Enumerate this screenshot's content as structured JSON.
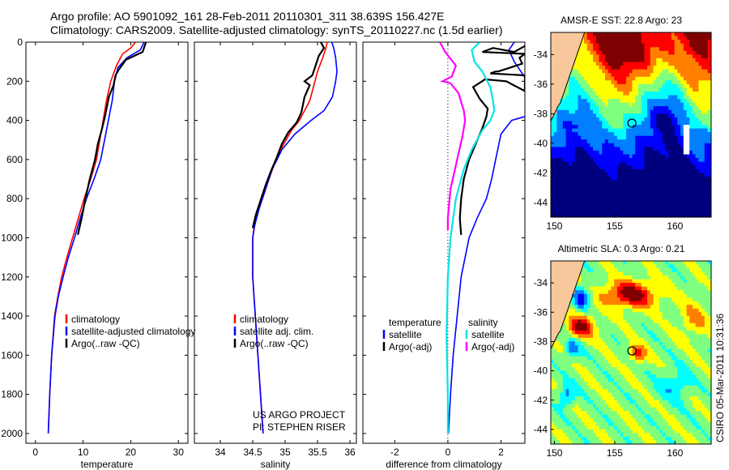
{
  "header": {
    "line1": "Argo profile: AO 5901092_161 28-Feb-2011 20110301_311 38.639S 156.427E",
    "line2": "Climatology: CARS2009. Satellite-adjusted climatology: synTS_20110227.nc (1.5d earlier)"
  },
  "credit": "CSIRO 05-Mar-2011 10:31:36",
  "colors": {
    "climatology": "#ff0000",
    "satellite": "#0000ff",
    "argo": "#000000",
    "cyan": "#00e5e5",
    "magenta": "#ff00ff"
  },
  "chart_data": [
    {
      "type": "line",
      "id": "temperature",
      "xlabel": "temperature",
      "xlim": [
        -2,
        32
      ],
      "ylim": [
        0,
        2050
      ],
      "xticks": [
        0,
        10,
        20,
        30
      ],
      "yticks": [
        0,
        200,
        400,
        600,
        800,
        1000,
        1200,
        1400,
        1600,
        1800,
        2000
      ],
      "legend": [
        "climatology",
        "satellite-adjusted climatology",
        "Argo(..raw -QC)"
      ],
      "series": [
        {
          "name": "climatology",
          "color": "#ff0000",
          "points": [
            [
              21,
              0
            ],
            [
              20,
              30
            ],
            [
              18.3,
              60
            ],
            [
              17,
              120
            ],
            [
              15.8,
              200
            ],
            [
              14.9,
              300
            ],
            [
              14.2,
              400
            ],
            [
              13.5,
              500
            ],
            [
              12.8,
              600
            ],
            [
              11.6,
              700
            ],
            [
              10.2,
              800
            ],
            [
              9,
              900
            ],
            [
              7.8,
              1000
            ],
            [
              6.6,
              1100
            ],
            [
              5.5,
              1200
            ],
            [
              4.7,
              1300
            ],
            [
              4,
              1400
            ],
            [
              3.4,
              1600
            ],
            [
              3,
              1800
            ],
            [
              2.7,
              2000
            ]
          ]
        },
        {
          "name": "satellite-adjusted climatology",
          "color": "#0000ff",
          "points": [
            [
              22.8,
              0
            ],
            [
              22,
              40
            ],
            [
              19.2,
              80
            ],
            [
              17.3,
              130
            ],
            [
              16.6,
              200
            ],
            [
              16.1,
              300
            ],
            [
              15.3,
              400
            ],
            [
              14.5,
              500
            ],
            [
              13.7,
              600
            ],
            [
              12.3,
              700
            ],
            [
              10.7,
              800
            ],
            [
              9.4,
              900
            ],
            [
              8.2,
              1000
            ],
            [
              6.9,
              1100
            ],
            [
              5.8,
              1200
            ],
            [
              4.8,
              1300
            ],
            [
              4.1,
              1400
            ],
            [
              3.4,
              1600
            ],
            [
              3,
              1800
            ],
            [
              2.7,
              2000
            ]
          ]
        },
        {
          "name": "Argo(..raw -QC)",
          "color": "#000000",
          "points": [
            [
              23.2,
              0
            ],
            [
              22.5,
              50
            ],
            [
              19,
              90
            ],
            [
              17.5,
              140
            ],
            [
              16.8,
              170
            ],
            [
              16.4,
              220
            ],
            [
              15.4,
              280
            ],
            [
              14.6,
              380
            ],
            [
              13.9,
              450
            ],
            [
              13.1,
              520
            ],
            [
              12.5,
              600
            ],
            [
              11.4,
              700
            ],
            [
              10.5,
              800
            ],
            [
              9.7,
              900
            ],
            [
              8.9,
              985
            ]
          ]
        }
      ]
    },
    {
      "type": "line",
      "id": "salinity",
      "xlabel": "salinity",
      "xlim": [
        33.6,
        36.1
      ],
      "ylim": [
        0,
        2050
      ],
      "xticks": [
        34,
        34.5,
        35,
        35.5,
        36
      ],
      "yticks": [
        0,
        200,
        400,
        600,
        800,
        1000,
        1200,
        1400,
        1600,
        1800,
        2000
      ],
      "legend": [
        "climatology",
        "satellite adj. clim.",
        "Argo(..raw -QC)"
      ],
      "annotation": [
        "US ARGO PROJECT",
        "PI: STEPHEN RISER"
      ],
      "series": [
        {
          "name": "climatology",
          "color": "#ff0000",
          "points": [
            [
              35.65,
              0
            ],
            [
              35.63,
              30
            ],
            [
              35.58,
              80
            ],
            [
              35.5,
              150
            ],
            [
              35.38,
              300
            ],
            [
              35.22,
              400
            ],
            [
              35.1,
              450
            ],
            [
              34.98,
              520
            ],
            [
              34.86,
              600
            ],
            [
              34.75,
              700
            ],
            [
              34.65,
              800
            ],
            [
              34.55,
              900
            ],
            [
              34.5,
              1000
            ],
            [
              34.5,
              1200
            ],
            [
              34.54,
              1400
            ],
            [
              34.58,
              1600
            ],
            [
              34.62,
              1800
            ],
            [
              34.66,
              2000
            ]
          ]
        },
        {
          "name": "satellite adj. clim.",
          "color": "#0000ff",
          "points": [
            [
              35.72,
              0
            ],
            [
              35.75,
              30
            ],
            [
              35.78,
              80
            ],
            [
              35.8,
              150
            ],
            [
              35.78,
              200
            ],
            [
              35.73,
              280
            ],
            [
              35.6,
              350
            ],
            [
              35.4,
              400
            ],
            [
              35.15,
              470
            ],
            [
              34.95,
              550
            ],
            [
              34.8,
              650
            ],
            [
              34.7,
              750
            ],
            [
              34.6,
              850
            ],
            [
              34.52,
              950
            ],
            [
              34.5,
              1000
            ],
            [
              34.5,
              1200
            ],
            [
              34.54,
              1400
            ],
            [
              34.58,
              1600
            ],
            [
              34.62,
              1800
            ],
            [
              34.66,
              2000
            ]
          ]
        },
        {
          "name": "Argo(..raw -QC)",
          "color": "#000000",
          "points": [
            [
              35.55,
              0
            ],
            [
              35.6,
              30
            ],
            [
              35.52,
              70
            ],
            [
              35.47,
              120
            ],
            [
              35.42,
              170
            ],
            [
              35.3,
              200
            ],
            [
              35.38,
              220
            ],
            [
              35.3,
              280
            ],
            [
              35.25,
              360
            ],
            [
              35.18,
              410
            ],
            [
              35.05,
              460
            ],
            [
              34.95,
              520
            ],
            [
              34.87,
              590
            ],
            [
              34.78,
              660
            ],
            [
              34.7,
              730
            ],
            [
              34.62,
              810
            ],
            [
              34.55,
              880
            ],
            [
              34.5,
              950
            ]
          ]
        }
      ]
    },
    {
      "type": "line",
      "id": "difference",
      "xlabel": "difference from climatology",
      "xlim": [
        -3.2,
        2.9
      ],
      "ylim": [
        0,
        2050
      ],
      "xticks": [
        -2,
        0,
        2
      ],
      "yticks": [
        0,
        200,
        400,
        600,
        800,
        1000,
        1200,
        1400,
        1600,
        1800,
        2000
      ],
      "legend_temperature": {
        "title": "temperature",
        "items": [
          "satellite",
          "Argo(-adj)"
        ]
      },
      "legend_salinity": {
        "title": "salinity",
        "items": [
          "satellite",
          "Argo(-adj)"
        ]
      },
      "series": [
        {
          "name": "temperature satellite",
          "color": "#0000ff",
          "points": [
            [
              2.5,
              0
            ],
            [
              2.3,
              40
            ],
            [
              2.5,
              100
            ],
            [
              2.9,
              180
            ],
            [
              3.1,
              220
            ],
            [
              3.1,
              300
            ],
            [
              2.9,
              380
            ],
            [
              2.4,
              400
            ],
            [
              2,
              470
            ],
            [
              1.8,
              600
            ],
            [
              1.65,
              700
            ],
            [
              1.45,
              800
            ],
            [
              1.1,
              900
            ],
            [
              0.8,
              1000
            ],
            [
              0.5,
              1200
            ],
            [
              0.35,
              1400
            ],
            [
              0.2,
              1600
            ],
            [
              0.1,
              1800
            ],
            [
              0.02,
              2000
            ]
          ]
        },
        {
          "name": "temperature Argo(-adj)",
          "color": "#000000",
          "points": [
            [
              2.9,
              20
            ],
            [
              2.5,
              50
            ],
            [
              1.7,
              30
            ],
            [
              1.3,
              50
            ],
            [
              2.9,
              60
            ],
            [
              2.7,
              80
            ],
            [
              2.8,
              110
            ],
            [
              1.9,
              150
            ],
            [
              1.8,
              150
            ],
            [
              1.6,
              160
            ],
            [
              2.9,
              170
            ],
            [
              2.9,
              250
            ],
            [
              2.2,
              200
            ],
            [
              1.4,
              190
            ],
            [
              0.95,
              230
            ],
            [
              1.2,
              290
            ],
            [
              1.5,
              340
            ],
            [
              1.45,
              380
            ],
            [
              1.3,
              440
            ],
            [
              1.05,
              520
            ],
            [
              0.8,
              600
            ],
            [
              0.6,
              700
            ],
            [
              0.5,
              800
            ],
            [
              0.45,
              900
            ],
            [
              0.5,
              985
            ]
          ]
        },
        {
          "name": "salinity satellite",
          "color": "#00e5e5",
          "points": [
            [
              1.2,
              0
            ],
            [
              0.9,
              40
            ],
            [
              1,
              100
            ],
            [
              1.3,
              150
            ],
            [
              1.6,
              230
            ],
            [
              1.7,
              300
            ],
            [
              1.75,
              350
            ],
            [
              1.6,
              400
            ],
            [
              1.3,
              450
            ],
            [
              0.9,
              550
            ],
            [
              0.6,
              650
            ],
            [
              0.3,
              800
            ],
            [
              0.1,
              1000
            ],
            [
              0,
              1200
            ],
            [
              -0.05,
              1500
            ],
            [
              0,
              1800
            ],
            [
              0,
              2000
            ]
          ]
        },
        {
          "name": "salinity Argo(-adj)",
          "color": "#ff00ff",
          "points": [
            [
              -0.3,
              0
            ],
            [
              -0.1,
              50
            ],
            [
              0.3,
              120
            ],
            [
              0.15,
              175
            ],
            [
              -0.2,
              200
            ],
            [
              0.1,
              210
            ],
            [
              0.4,
              260
            ],
            [
              0.6,
              350
            ],
            [
              0.65,
              400
            ],
            [
              0.55,
              480
            ],
            [
              0.35,
              600
            ],
            [
              0.1,
              750
            ],
            [
              0,
              900
            ],
            [
              0,
              960
            ]
          ]
        }
      ]
    }
  ],
  "maps": [
    {
      "type": "heatmap",
      "id": "sst",
      "title": "AMSR-E SST: 22.8 Argo: 23",
      "xlim": [
        149.7,
        163
      ],
      "ylim": [
        -45,
        -32.5
      ],
      "xticks": [
        150,
        155,
        160
      ],
      "yticks": [
        -34,
        -36,
        -38,
        -40,
        -42,
        -44
      ],
      "argo_position": [
        156.427,
        -38.639
      ],
      "colors": [
        "#00007f",
        "#0000ff",
        "#007fff",
        "#00ffff",
        "#7fff7f",
        "#ffff00",
        "#ff7f00",
        "#ff0000",
        "#7f0000"
      ]
    },
    {
      "type": "heatmap",
      "id": "sla",
      "title": "Altimetric SLA: 0.3 Argo: 0.21",
      "xlim": [
        149.7,
        163
      ],
      "ylim": [
        -45,
        -32.5
      ],
      "xticks": [
        150,
        155,
        160
      ],
      "yticks": [
        -34,
        -36,
        -38,
        -40,
        -42,
        -44
      ],
      "argo_position": [
        156.427,
        -38.639
      ],
      "colors": [
        "#0000ff",
        "#007fff",
        "#00ffff",
        "#7fff7f",
        "#ffff00",
        "#ff7f00",
        "#ff0000",
        "#7f0000"
      ]
    }
  ]
}
